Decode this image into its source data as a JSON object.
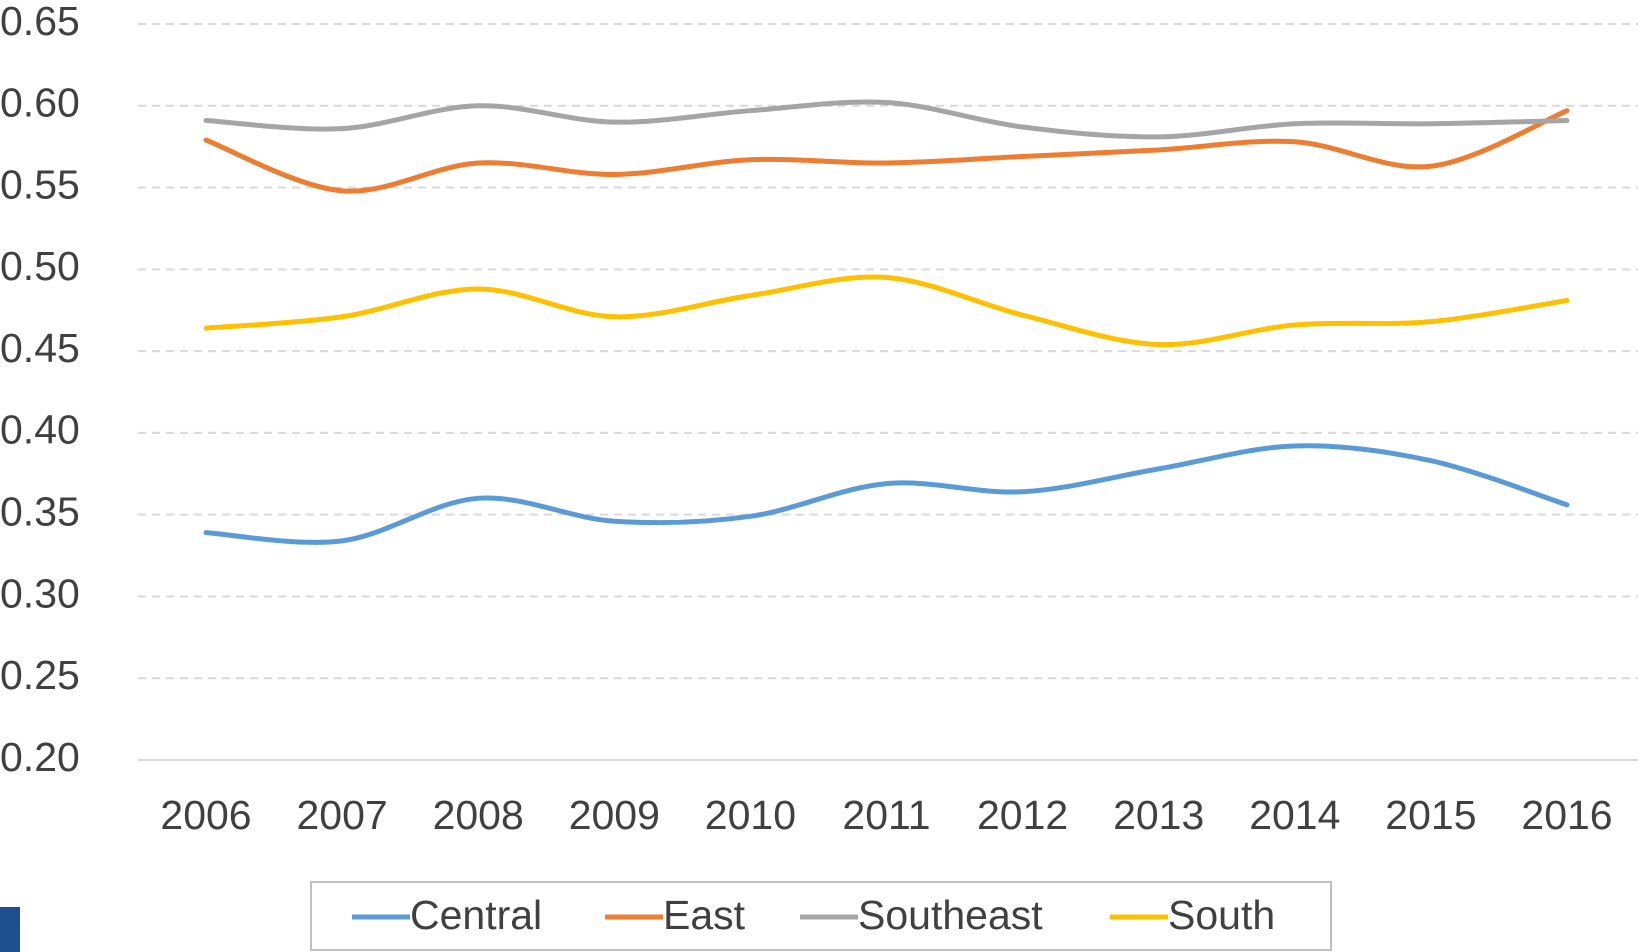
{
  "chart_data": {
    "type": "line",
    "categories": [
      "2006",
      "2007",
      "2008",
      "2009",
      "2010",
      "2011",
      "2012",
      "2013",
      "2014",
      "2015",
      "2016"
    ],
    "series": [
      {
        "name": "Central",
        "color": "#5b9bd5",
        "values": [
          0.339,
          0.334,
          0.36,
          0.346,
          0.349,
          0.369,
          0.364,
          0.378,
          0.392,
          0.383,
          0.356
        ]
      },
      {
        "name": "East",
        "color": "#ed7d31",
        "values": [
          0.579,
          0.548,
          0.565,
          0.558,
          0.567,
          0.565,
          0.569,
          0.573,
          0.578,
          0.563,
          0.597
        ]
      },
      {
        "name": "Southeast",
        "color": "#a5a5a5",
        "values": [
          0.591,
          0.586,
          0.6,
          0.59,
          0.597,
          0.602,
          0.587,
          0.581,
          0.589,
          0.589,
          0.591
        ]
      },
      {
        "name": "South",
        "color": "#ffc000",
        "values": [
          0.464,
          0.471,
          0.488,
          0.471,
          0.484,
          0.495,
          0.472,
          0.454,
          0.466,
          0.468,
          0.481
        ]
      }
    ],
    "ylim": [
      0.2,
      0.65
    ],
    "yticks": [
      {
        "value": 0.2,
        "label": "0.20"
      },
      {
        "value": 0.25,
        "label": "0.25"
      },
      {
        "value": 0.3,
        "label": "0.30"
      },
      {
        "value": 0.35,
        "label": "0.35"
      },
      {
        "value": 0.4,
        "label": "0.40"
      },
      {
        "value": 0.45,
        "label": "0.45"
      },
      {
        "value": 0.5,
        "label": "0.50"
      },
      {
        "value": 0.55,
        "label": "0.55"
      },
      {
        "value": 0.6,
        "label": "0.60"
      },
      {
        "value": 0.65,
        "label": "0.65"
      }
    ],
    "grid": true,
    "legend": "bottom",
    "smooth": true
  }
}
